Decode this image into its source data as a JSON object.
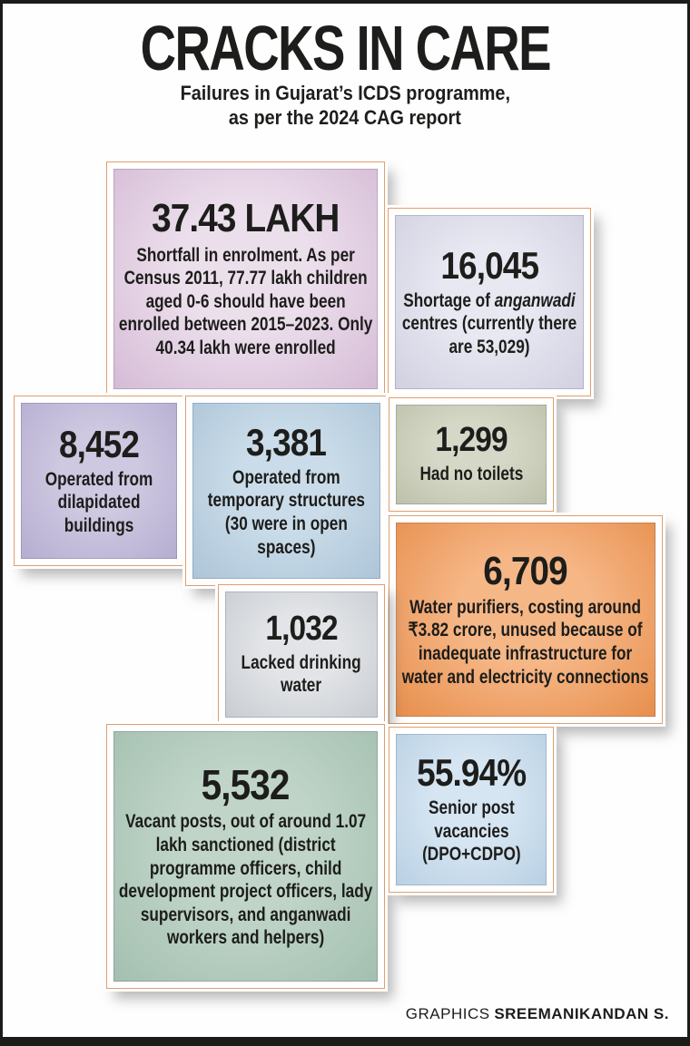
{
  "page": {
    "title": "CRACKS IN CARE",
    "subtitle_line1": "Failures in Gujarat’s ICDS programme,",
    "subtitle_line2": "as per the 2024 CAG report",
    "credit": {
      "label": "GRAPHICS",
      "name": "SREEMANIKANDAN S."
    }
  },
  "colors": {
    "frame_line": "#e09e6d",
    "border_black": "#1b1b19",
    "text": "#1d1d1b"
  },
  "chart_data": {
    "type": "table",
    "title": "CRACKS IN CARE",
    "subtitle": "Failures in Gujarat’s ICDS programme, as per the 2024 CAG report",
    "stats": [
      {
        "value": "37.43 lakh",
        "metric": "Shortfall in enrolment; as per Census 2011, 77.77 lakh children aged 0-6 should have been enrolled between 2015–2023, only 40.34 lakh were enrolled"
      },
      {
        "value": 16045,
        "metric": "Shortage of anganwadi centres (currently there are 53,029)"
      },
      {
        "value": 8452,
        "metric": "Operated from dilapidated buildings"
      },
      {
        "value": 3381,
        "metric": "Operated from temporary structures (30 were in open spaces)"
      },
      {
        "value": 1299,
        "metric": "Had no toilets"
      },
      {
        "value": 6709,
        "metric": "Water purifiers, costing around ₹3.82 crore, unused because of inadequate infrastructure for water and electricity connections"
      },
      {
        "value": 1032,
        "metric": "Lacked drinking water"
      },
      {
        "value": 5532,
        "metric": "Vacant posts, out of around 1.07 lakh sanctioned (district programme officers, child development project officers, lady supervisors, and anganwadi workers and helpers)"
      },
      {
        "value": "55.94%",
        "metric": "Senior post vacancies (DPO+CDPO)"
      }
    ]
  },
  "boxes": [
    {
      "id": "enrolment-shortfall",
      "value": "37.43 LAKH",
      "text": "Shortfall in enrolment. As per Census 2011, 77.77 lakh children aged 0-6 should have been enrolled between 2015–2023. Only 40.34 lakh were enrolled",
      "fill_center": "#ecdfec",
      "fill_edge": "#d5bbd6"
    },
    {
      "id": "anganwadi-shortage",
      "value": "16,045",
      "segments": [
        {
          "text": "Shortage of ",
          "italic": false
        },
        {
          "text": "anganwadi",
          "italic": true
        },
        {
          "text": " centres (currently there are 53,029)",
          "italic": false
        }
      ],
      "fill_center": "#e8e8f2",
      "fill_edge": "#d0d0e1"
    },
    {
      "id": "dilapidated-buildings",
      "value": "8,452",
      "text": "Operated from dilapidated buildings",
      "fill_center": "#cfc8e1",
      "fill_edge": "#b5add0"
    },
    {
      "id": "temporary-structures",
      "value": "3,381",
      "text": "Operated from temporary structures (30 were in open spaces)",
      "fill_center": "#cadce9",
      "fill_edge": "#adc5d8"
    },
    {
      "id": "no-toilets",
      "value": "1,299",
      "text": "Had no toilets",
      "fill_center": "#d5d8c6",
      "fill_edge": "#bdc1ab"
    },
    {
      "id": "water-purifiers",
      "value": "6,709",
      "text": "Water purifiers, costing around ₹3.82 crore, unused because of inadequate infrastructure for water and electricity connections",
      "fill_center": "#f6b787",
      "fill_edge": "#e78e4c"
    },
    {
      "id": "no-drinking-water",
      "value": "1,032",
      "text": "Lacked drinking water",
      "fill_center": "#e2e4e7",
      "fill_edge": "#c8ccd1"
    },
    {
      "id": "vacant-posts",
      "value": "5,532",
      "text": "Vacant posts, out of around 1.07 lakh sanctioned (district programme officers, child development project officers, lady supervisors, and anganwadi workers and helpers)",
      "fill_center": "#c0d5c8",
      "fill_edge": "#a3bfb0"
    },
    {
      "id": "senior-vacancies",
      "value": "55.94%",
      "text": "Senior post vacancies (DPO+CDPO)",
      "fill_center": "#d6e5f2",
      "fill_edge": "#b8d0e3"
    }
  ]
}
